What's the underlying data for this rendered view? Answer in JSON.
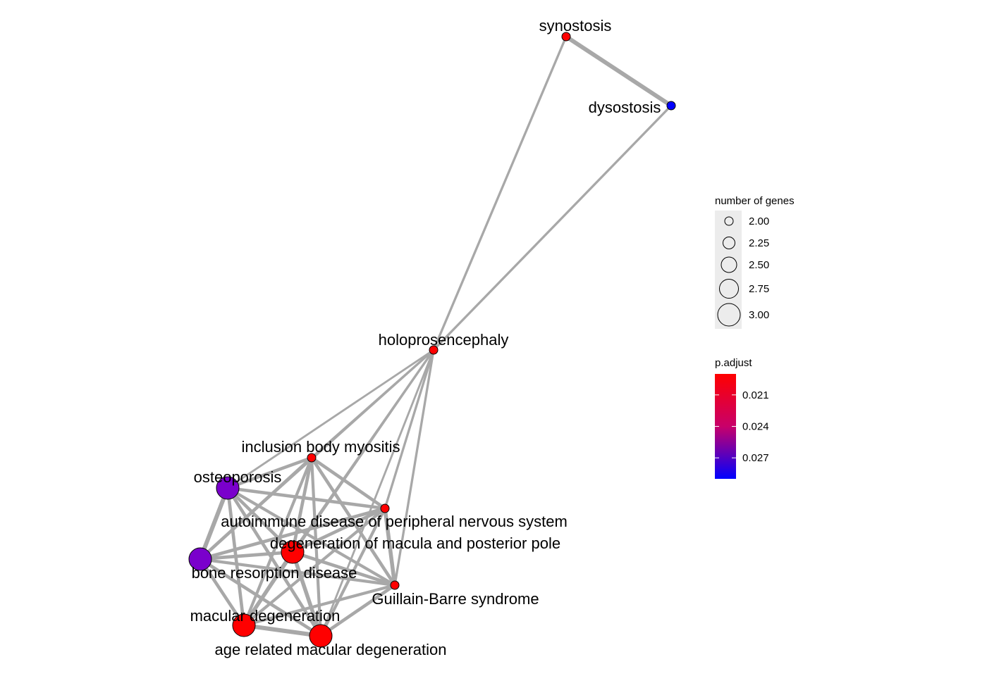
{
  "chart_data": {
    "type": "network",
    "nodes": [
      {
        "id": "synostosis",
        "label": "synostosis",
        "count": 2,
        "p_adjust": 0.019,
        "color": "#ff0000"
      },
      {
        "id": "dysostosis",
        "label": "dysostosis",
        "count": 2,
        "p_adjust": 0.029,
        "color": "#0000ff"
      },
      {
        "id": "holoprosencephaly",
        "label": "holoprosencephaly",
        "count": 2,
        "p_adjust": 0.019,
        "color": "#ff0000"
      },
      {
        "id": "inclusion_body_myositis",
        "label": "inclusion body myositis",
        "count": 2,
        "p_adjust": 0.019,
        "color": "#ff0000"
      },
      {
        "id": "osteoporosis",
        "label": "osteoporosis",
        "count": 3,
        "p_adjust": 0.027,
        "color": "#7a00cc"
      },
      {
        "id": "autoimmune_pns",
        "label": "autoimmune disease of peripheral nervous system",
        "count": 2,
        "p_adjust": 0.019,
        "color": "#ff0000"
      },
      {
        "id": "degeneration_macula",
        "label": "degeneration of macula and posterior pole",
        "count": 3,
        "p_adjust": 0.019,
        "color": "#ff0000"
      },
      {
        "id": "bone_resorption",
        "label": "bone resorption disease",
        "count": 3,
        "p_adjust": 0.027,
        "color": "#7a00cc"
      },
      {
        "id": "guillain_barre",
        "label": "Guillain-Barre syndrome",
        "count": 2,
        "p_adjust": 0.019,
        "color": "#ff0000"
      },
      {
        "id": "macular_degeneration",
        "label": "macular degeneration",
        "count": 3,
        "p_adjust": 0.019,
        "color": "#ff0000"
      },
      {
        "id": "age_related_md",
        "label": "age related macular degeneration",
        "count": 3,
        "p_adjust": 0.019,
        "color": "#ff0000"
      }
    ],
    "edges": [
      {
        "source": "synostosis",
        "target": "dysostosis",
        "weight": 1.0
      },
      {
        "source": "synostosis",
        "target": "holoprosencephaly",
        "weight": 0.4
      },
      {
        "source": "dysostosis",
        "target": "holoprosencephaly",
        "weight": 0.4
      },
      {
        "source": "holoprosencephaly",
        "target": "osteoporosis",
        "weight": 0.3
      },
      {
        "source": "holoprosencephaly",
        "target": "inclusion_body_myositis",
        "weight": 0.4
      },
      {
        "source": "holoprosencephaly",
        "target": "degeneration_macula",
        "weight": 0.4
      },
      {
        "source": "holoprosencephaly",
        "target": "autoimmune_pns",
        "weight": 0.4
      },
      {
        "source": "holoprosencephaly",
        "target": "guillain_barre",
        "weight": 0.4
      },
      {
        "source": "holoprosencephaly",
        "target": "bone_resorption",
        "weight": 0.3
      },
      {
        "source": "holoprosencephaly",
        "target": "macular_degeneration",
        "weight": 0.3
      },
      {
        "source": "holoprosencephaly",
        "target": "age_related_md",
        "weight": 0.3
      },
      {
        "source": "inclusion_body_myositis",
        "target": "osteoporosis",
        "weight": 0.7
      },
      {
        "source": "inclusion_body_myositis",
        "target": "autoimmune_pns",
        "weight": 0.7
      },
      {
        "source": "inclusion_body_myositis",
        "target": "degeneration_macula",
        "weight": 0.7
      },
      {
        "source": "inclusion_body_myositis",
        "target": "bone_resorption",
        "weight": 0.7
      },
      {
        "source": "inclusion_body_myositis",
        "target": "guillain_barre",
        "weight": 0.7
      },
      {
        "source": "inclusion_body_myositis",
        "target": "macular_degeneration",
        "weight": 0.6
      },
      {
        "source": "inclusion_body_myositis",
        "target": "age_related_md",
        "weight": 0.6
      },
      {
        "source": "osteoporosis",
        "target": "bone_resorption",
        "weight": 1.0
      },
      {
        "source": "osteoporosis",
        "target": "autoimmune_pns",
        "weight": 0.7
      },
      {
        "source": "osteoporosis",
        "target": "degeneration_macula",
        "weight": 0.7
      },
      {
        "source": "osteoporosis",
        "target": "guillain_barre",
        "weight": 0.6
      },
      {
        "source": "osteoporosis",
        "target": "macular_degeneration",
        "weight": 0.7
      },
      {
        "source": "osteoporosis",
        "target": "age_related_md",
        "weight": 0.7
      },
      {
        "source": "autoimmune_pns",
        "target": "guillain_barre",
        "weight": 0.9
      },
      {
        "source": "autoimmune_pns",
        "target": "degeneration_macula",
        "weight": 0.7
      },
      {
        "source": "autoimmune_pns",
        "target": "bone_resorption",
        "weight": 0.7
      },
      {
        "source": "autoimmune_pns",
        "target": "macular_degeneration",
        "weight": 0.6
      },
      {
        "source": "autoimmune_pns",
        "target": "age_related_md",
        "weight": 0.6
      },
      {
        "source": "degeneration_macula",
        "target": "bone_resorption",
        "weight": 0.7
      },
      {
        "source": "degeneration_macula",
        "target": "guillain_barre",
        "weight": 0.7
      },
      {
        "source": "degeneration_macula",
        "target": "macular_degeneration",
        "weight": 0.9
      },
      {
        "source": "degeneration_macula",
        "target": "age_related_md",
        "weight": 0.9
      },
      {
        "source": "bone_resorption",
        "target": "guillain_barre",
        "weight": 0.6
      },
      {
        "source": "bone_resorption",
        "target": "macular_degeneration",
        "weight": 0.7
      },
      {
        "source": "bone_resorption",
        "target": "age_related_md",
        "weight": 0.7
      },
      {
        "source": "guillain_barre",
        "target": "macular_degeneration",
        "weight": 0.6
      },
      {
        "source": "guillain_barre",
        "target": "age_related_md",
        "weight": 0.7
      },
      {
        "source": "macular_degeneration",
        "target": "age_related_md",
        "weight": 1.0
      }
    ],
    "edge_color": "#a8a8a8",
    "legend_size": {
      "title": "number of genes",
      "entries": [
        {
          "label": "2.00",
          "value": 2.0
        },
        {
          "label": "2.25",
          "value": 2.25
        },
        {
          "label": "2.50",
          "value": 2.5
        },
        {
          "label": "2.75",
          "value": 2.75
        },
        {
          "label": "3.00",
          "value": 3.0
        }
      ]
    },
    "legend_color": {
      "title": "p.adjust",
      "gradient_top": "#ff0000",
      "gradient_bottom": "#0000ff",
      "range": [
        0.019,
        0.029
      ],
      "ticks": [
        {
          "label": "0.021",
          "value": 0.021
        },
        {
          "label": "0.024",
          "value": 0.024
        },
        {
          "label": "0.027",
          "value": 0.027
        }
      ]
    }
  }
}
